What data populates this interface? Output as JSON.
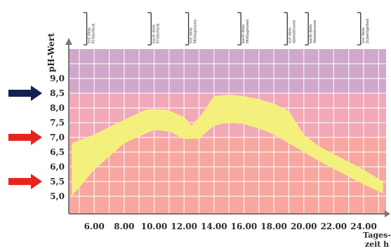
{
  "chart_data": {
    "type": "area",
    "ylabel": "pH-Wert",
    "xlabel_line1": "Tages-",
    "xlabel_line2": "zeit h",
    "xlim": [
      4.3,
      25.5
    ],
    "ylim": [
      4.4,
      10.0
    ],
    "x_ticks": [
      {
        "x": 6,
        "label": "6.00"
      },
      {
        "x": 8,
        "label": "8.00"
      },
      {
        "x": 10,
        "label": "10.00"
      },
      {
        "x": 12,
        "label": "12.00"
      },
      {
        "x": 14,
        "label": "14.00"
      },
      {
        "x": 16,
        "label": "16.00"
      },
      {
        "x": 18,
        "label": "18.00"
      },
      {
        "x": 20,
        "label": "20.00"
      },
      {
        "x": 22,
        "label": "22.00"
      },
      {
        "x": 24,
        "label": "24.00"
      }
    ],
    "y_ticks": [
      {
        "y": 5.0,
        "label": "5,0"
      },
      {
        "y": 5.5,
        "label": "5,5"
      },
      {
        "y": 6.0,
        "label": "6,0"
      },
      {
        "y": 6.5,
        "label": "6,5"
      },
      {
        "y": 7.0,
        "label": "7,0"
      },
      {
        "y": 7.5,
        "label": "7,5"
      },
      {
        "y": 8.0,
        "label": "8,0"
      },
      {
        "y": 8.5,
        "label": "8,5"
      },
      {
        "y": 9.0,
        "label": "9,0"
      }
    ],
    "bands": [
      {
        "from": 8.5,
        "to": 10.0,
        "color": "#cfa8cc"
      },
      {
        "from": 7.0,
        "to": 8.5,
        "color": "#f1a8b8"
      },
      {
        "from": 4.4,
        "to": 7.0,
        "color": "#f7a79f"
      }
    ],
    "range_band": {
      "color": "#f4f07e",
      "upper": [
        {
          "x": 4.5,
          "y": 6.8
        },
        {
          "x": 6.0,
          "y": 7.1
        },
        {
          "x": 8.0,
          "y": 7.6
        },
        {
          "x": 9.5,
          "y": 7.95
        },
        {
          "x": 10.8,
          "y": 7.95
        },
        {
          "x": 12.0,
          "y": 7.7
        },
        {
          "x": 12.5,
          "y": 7.4
        },
        {
          "x": 13.2,
          "y": 7.8
        },
        {
          "x": 14.0,
          "y": 8.4
        },
        {
          "x": 15.0,
          "y": 8.45
        },
        {
          "x": 16.0,
          "y": 8.4
        },
        {
          "x": 17.0,
          "y": 8.3
        },
        {
          "x": 18.0,
          "y": 8.15
        },
        {
          "x": 19.0,
          "y": 7.9
        },
        {
          "x": 20.0,
          "y": 7.1
        },
        {
          "x": 21.0,
          "y": 6.7
        },
        {
          "x": 22.5,
          "y": 6.3
        },
        {
          "x": 24.0,
          "y": 5.9
        },
        {
          "x": 25.3,
          "y": 5.5
        }
      ],
      "lower": [
        {
          "x": 4.5,
          "y": 5.0
        },
        {
          "x": 6.0,
          "y": 5.9
        },
        {
          "x": 8.0,
          "y": 6.8
        },
        {
          "x": 10.0,
          "y": 7.25
        },
        {
          "x": 11.0,
          "y": 7.2
        },
        {
          "x": 12.0,
          "y": 6.95
        },
        {
          "x": 13.0,
          "y": 6.95
        },
        {
          "x": 14.0,
          "y": 7.4
        },
        {
          "x": 15.0,
          "y": 7.5
        },
        {
          "x": 16.0,
          "y": 7.45
        },
        {
          "x": 17.0,
          "y": 7.3
        },
        {
          "x": 18.0,
          "y": 7.1
        },
        {
          "x": 19.0,
          "y": 6.8
        },
        {
          "x": 20.0,
          "y": 6.5
        },
        {
          "x": 21.0,
          "y": 6.2
        },
        {
          "x": 22.5,
          "y": 5.8
        },
        {
          "x": 24.0,
          "y": 5.4
        },
        {
          "x": 25.3,
          "y": 5.1
        }
      ]
    },
    "meal_markers": [
      {
        "x": 5.5,
        "line1": "vor dem",
        "line2": "Frühstück"
      },
      {
        "x": 9.8,
        "line1": "nach dem",
        "line2": "Frühstück"
      },
      {
        "x": 12.3,
        "line1": "vor dem",
        "line2": "Mittagessen"
      },
      {
        "x": 15.8,
        "line1": "nach dem",
        "line2": "Mittagessen"
      },
      {
        "x": 18.9,
        "line1": "vor dem",
        "line2": "Abendessen"
      },
      {
        "x": 20.3,
        "line1": "nach dem",
        "line2": "Abendessen"
      },
      {
        "x": 23.8,
        "line1": "vor dem",
        "line2": "Zubettgehen"
      }
    ],
    "arrow_markers": [
      {
        "y": 8.5,
        "color": "#14214f"
      },
      {
        "y": 7.0,
        "color": "#e8231c"
      },
      {
        "y": 5.5,
        "color": "#e8231c"
      }
    ],
    "grid": true
  }
}
